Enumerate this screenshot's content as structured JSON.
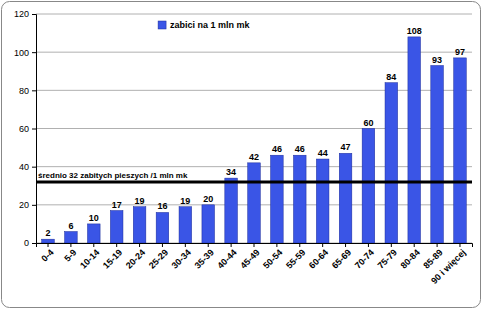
{
  "chart_data": {
    "type": "bar",
    "categories": [
      "0-4",
      "5-9",
      "10-14",
      "15-19",
      "20-24",
      "25-29",
      "30-34",
      "35-39",
      "40-44",
      "45-49",
      "50-54",
      "55-59",
      "60-64",
      "65-69",
      "70-74",
      "75-79",
      "80-84",
      "85-89",
      "90 i więcej"
    ],
    "series": [
      {
        "name": "zabici na 1 mln mk",
        "color": "#3a55e6",
        "values": [
          2,
          6,
          10,
          17,
          19,
          16,
          19,
          20,
          34,
          42,
          46,
          46,
          44,
          47,
          60,
          84,
          108,
          93,
          97
        ]
      }
    ],
    "ylim": [
      0,
      120
    ],
    "yticks": [
      0,
      20,
      40,
      60,
      80,
      100,
      120
    ],
    "grid": true,
    "legend": "top",
    "data_labels": true,
    "annotations": [
      {
        "text": "średnio 32 zabitych pieszych /1 mln mk",
        "y": 32
      }
    ]
  }
}
